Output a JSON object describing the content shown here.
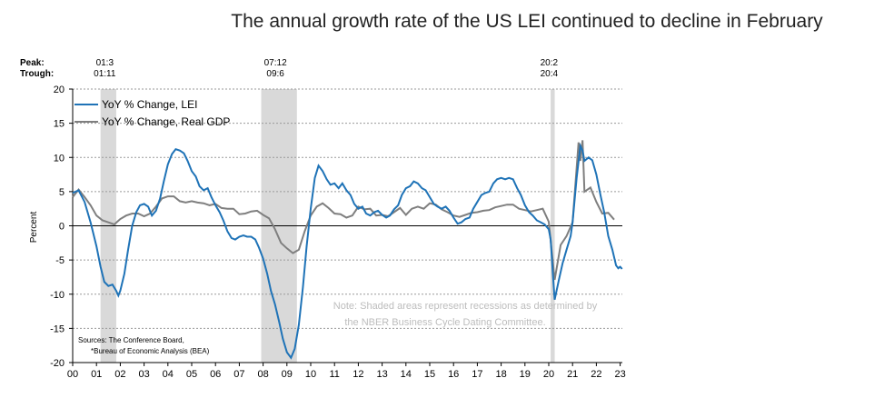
{
  "chart_data": {
    "type": "line",
    "title": "The annual growth rate of the US LEI continued to decline in February",
    "ylabel": "Percent",
    "xlabel": "",
    "ylim": [
      -20,
      20
    ],
    "yticks": [
      -20,
      -15,
      -10,
      -5,
      0,
      5,
      10,
      15,
      20
    ],
    "xlim": [
      2000,
      2023.5
    ],
    "xticks": [
      "00",
      "01",
      "02",
      "03",
      "04",
      "05",
      "06",
      "07",
      "08",
      "09",
      "10",
      "11",
      "12",
      "13",
      "14",
      "15",
      "16",
      "17",
      "18",
      "19",
      "20",
      "21",
      "22",
      "23"
    ],
    "grid": "horizontal dotted",
    "legend_position": "top-left",
    "recession_header": {
      "peak_label": "Peak:",
      "trough_label": "Trough:"
    },
    "recessions": [
      {
        "peak": "01:3",
        "trough": "01:11",
        "start": 2001.17,
        "end": 2001.83
      },
      {
        "peak": "07:12",
        "trough": "09:6",
        "start": 2007.92,
        "end": 2009.42
      },
      {
        "peak": "20:2",
        "trough": "20:4",
        "start": 2020.08,
        "end": 2020.25
      }
    ],
    "series": [
      {
        "name": "YoY % Change, LEI",
        "color": "#1f73b7",
        "points": [
          [
            2000.0,
            4.8
          ],
          [
            2000.25,
            5.2
          ],
          [
            2000.5,
            3.5
          ],
          [
            2000.75,
            0.5
          ],
          [
            2001.0,
            -3
          ],
          [
            2001.17,
            -6
          ],
          [
            2001.33,
            -8.2
          ],
          [
            2001.5,
            -8.8
          ],
          [
            2001.67,
            -8.6
          ],
          [
            2001.83,
            -9.5
          ],
          [
            2001.92,
            -10.2
          ],
          [
            2002.0,
            -9.5
          ],
          [
            2002.17,
            -7
          ],
          [
            2002.33,
            -3.5
          ],
          [
            2002.5,
            0
          ],
          [
            2002.67,
            2
          ],
          [
            2002.83,
            3
          ],
          [
            2003.0,
            3.2
          ],
          [
            2003.17,
            2.8
          ],
          [
            2003.33,
            1.5
          ],
          [
            2003.5,
            2.2
          ],
          [
            2003.67,
            4
          ],
          [
            2003.83,
            6.5
          ],
          [
            2004.0,
            9
          ],
          [
            2004.17,
            10.5
          ],
          [
            2004.33,
            11.2
          ],
          [
            2004.5,
            11
          ],
          [
            2004.67,
            10.6
          ],
          [
            2004.83,
            9.5
          ],
          [
            2005.0,
            8
          ],
          [
            2005.17,
            7.2
          ],
          [
            2005.33,
            5.8
          ],
          [
            2005.5,
            5.2
          ],
          [
            2005.67,
            5.5
          ],
          [
            2005.83,
            4.2
          ],
          [
            2006.0,
            3
          ],
          [
            2006.17,
            2
          ],
          [
            2006.33,
            0.8
          ],
          [
            2006.5,
            -0.8
          ],
          [
            2006.67,
            -1.8
          ],
          [
            2006.83,
            -2
          ],
          [
            2007.0,
            -1.6
          ],
          [
            2007.17,
            -1.4
          ],
          [
            2007.33,
            -1.6
          ],
          [
            2007.5,
            -1.6
          ],
          [
            2007.67,
            -2
          ],
          [
            2007.83,
            -3.2
          ],
          [
            2008.0,
            -4.8
          ],
          [
            2008.17,
            -7
          ],
          [
            2008.33,
            -9.5
          ],
          [
            2008.5,
            -11.5
          ],
          [
            2008.67,
            -14
          ],
          [
            2008.83,
            -16.5
          ],
          [
            2009.0,
            -18.5
          ],
          [
            2009.17,
            -19.3
          ],
          [
            2009.33,
            -18
          ],
          [
            2009.5,
            -14.5
          ],
          [
            2009.67,
            -9
          ],
          [
            2009.83,
            -3
          ],
          [
            2010.0,
            2.5
          ],
          [
            2010.17,
            7
          ],
          [
            2010.33,
            8.8
          ],
          [
            2010.5,
            8
          ],
          [
            2010.67,
            6.8
          ],
          [
            2010.83,
            6
          ],
          [
            2011.0,
            6.2
          ],
          [
            2011.17,
            5.5
          ],
          [
            2011.33,
            6.2
          ],
          [
            2011.5,
            5.2
          ],
          [
            2011.67,
            4.5
          ],
          [
            2011.83,
            3.2
          ],
          [
            2012.0,
            2.5
          ],
          [
            2012.17,
            2.8
          ],
          [
            2012.33,
            1.8
          ],
          [
            2012.5,
            1.5
          ],
          [
            2012.67,
            2
          ],
          [
            2012.83,
            2.2
          ],
          [
            2013.0,
            1.6
          ],
          [
            2013.17,
            1.2
          ],
          [
            2013.33,
            1.5
          ],
          [
            2013.5,
            2.4
          ],
          [
            2013.67,
            3
          ],
          [
            2013.83,
            4.5
          ],
          [
            2014.0,
            5.5
          ],
          [
            2014.17,
            5.8
          ],
          [
            2014.33,
            6.5
          ],
          [
            2014.5,
            6.2
          ],
          [
            2014.67,
            5.5
          ],
          [
            2014.83,
            5.2
          ],
          [
            2015.0,
            4.2
          ],
          [
            2015.17,
            3.2
          ],
          [
            2015.33,
            2.8
          ],
          [
            2015.5,
            2.5
          ],
          [
            2015.67,
            2.8
          ],
          [
            2015.83,
            2.2
          ],
          [
            2016.0,
            1.2
          ],
          [
            2016.17,
            0.3
          ],
          [
            2016.33,
            0.5
          ],
          [
            2016.5,
            1
          ],
          [
            2016.67,
            1.2
          ],
          [
            2016.83,
            2.5
          ],
          [
            2017.0,
            3.5
          ],
          [
            2017.17,
            4.5
          ],
          [
            2017.33,
            4.8
          ],
          [
            2017.5,
            5
          ],
          [
            2017.67,
            6.2
          ],
          [
            2017.83,
            6.8
          ],
          [
            2018.0,
            7
          ],
          [
            2018.17,
            6.8
          ],
          [
            2018.33,
            7
          ],
          [
            2018.5,
            6.8
          ],
          [
            2018.67,
            5.5
          ],
          [
            2018.83,
            4.5
          ],
          [
            2019.0,
            3
          ],
          [
            2019.17,
            2
          ],
          [
            2019.33,
            1.5
          ],
          [
            2019.5,
            0.8
          ],
          [
            2019.67,
            0.5
          ],
          [
            2019.83,
            0.2
          ],
          [
            2020.0,
            -0.5
          ],
          [
            2020.08,
            -2
          ],
          [
            2020.17,
            -7
          ],
          [
            2020.25,
            -10.8
          ],
          [
            2020.42,
            -8
          ],
          [
            2020.58,
            -5.5
          ],
          [
            2020.75,
            -3.5
          ],
          [
            2020.92,
            -1.5
          ],
          [
            2021.0,
            0.5
          ],
          [
            2021.17,
            7
          ],
          [
            2021.33,
            11.7
          ],
          [
            2021.42,
            11
          ],
          [
            2021.5,
            9.5
          ],
          [
            2021.67,
            10
          ],
          [
            2021.83,
            9.6
          ],
          [
            2022.0,
            7.5
          ],
          [
            2022.17,
            4.5
          ],
          [
            2022.33,
            2
          ],
          [
            2022.5,
            -1.5
          ],
          [
            2022.67,
            -3.5
          ],
          [
            2022.83,
            -5.8
          ],
          [
            2022.92,
            -6.2
          ],
          [
            2023.0,
            -6
          ],
          [
            2023.08,
            -6.3
          ]
        ]
      },
      {
        "name": "YoY % Change, Real GDP",
        "color": "#7f7f7f",
        "points": [
          [
            2000.0,
            4.2
          ],
          [
            2000.25,
            5.3
          ],
          [
            2000.5,
            4.2
          ],
          [
            2000.75,
            3
          ],
          [
            2001.0,
            1.5
          ],
          [
            2001.25,
            0.8
          ],
          [
            2001.5,
            0.5
          ],
          [
            2001.75,
            0.2
          ],
          [
            2002.0,
            1
          ],
          [
            2002.25,
            1.5
          ],
          [
            2002.5,
            1.8
          ],
          [
            2002.75,
            1.8
          ],
          [
            2003.0,
            1.4
          ],
          [
            2003.25,
            1.8
          ],
          [
            2003.5,
            2.8
          ],
          [
            2003.75,
            4
          ],
          [
            2004.0,
            4.3
          ],
          [
            2004.25,
            4.3
          ],
          [
            2004.5,
            3.6
          ],
          [
            2004.75,
            3.4
          ],
          [
            2005.0,
            3.6
          ],
          [
            2005.25,
            3.4
          ],
          [
            2005.5,
            3.3
          ],
          [
            2005.75,
            3
          ],
          [
            2006.0,
            3.2
          ],
          [
            2006.25,
            2.6
          ],
          [
            2006.5,
            2.5
          ],
          [
            2006.75,
            2.5
          ],
          [
            2007.0,
            1.7
          ],
          [
            2007.25,
            1.8
          ],
          [
            2007.5,
            2.1
          ],
          [
            2007.75,
            2.2
          ],
          [
            2008.0,
            1.6
          ],
          [
            2008.25,
            1.1
          ],
          [
            2008.5,
            -0.5
          ],
          [
            2008.75,
            -2.5
          ],
          [
            2009.0,
            -3.3
          ],
          [
            2009.25,
            -4
          ],
          [
            2009.5,
            -3.5
          ],
          [
            2009.75,
            -0.8
          ],
          [
            2010.0,
            1.5
          ],
          [
            2010.25,
            2.8
          ],
          [
            2010.5,
            3.3
          ],
          [
            2010.75,
            2.6
          ],
          [
            2011.0,
            1.8
          ],
          [
            2011.25,
            1.7
          ],
          [
            2011.5,
            1.2
          ],
          [
            2011.75,
            1.5
          ],
          [
            2012.0,
            2.8
          ],
          [
            2012.25,
            2.4
          ],
          [
            2012.5,
            2.5
          ],
          [
            2012.75,
            1.5
          ],
          [
            2013.0,
            1.6
          ],
          [
            2013.25,
            1.4
          ],
          [
            2013.5,
            2
          ],
          [
            2013.75,
            2.6
          ],
          [
            2014.0,
            1.6
          ],
          [
            2014.25,
            2.5
          ],
          [
            2014.5,
            2.8
          ],
          [
            2014.75,
            2.5
          ],
          [
            2015.0,
            3.3
          ],
          [
            2015.25,
            3.1
          ],
          [
            2015.5,
            2.4
          ],
          [
            2015.75,
            2
          ],
          [
            2016.0,
            1.5
          ],
          [
            2016.25,
            1.3
          ],
          [
            2016.5,
            1.6
          ],
          [
            2016.75,
            1.9
          ],
          [
            2017.0,
            2
          ],
          [
            2017.25,
            2.2
          ],
          [
            2017.5,
            2.3
          ],
          [
            2017.75,
            2.7
          ],
          [
            2018.0,
            2.9
          ],
          [
            2018.25,
            3.1
          ],
          [
            2018.5,
            3.1
          ],
          [
            2018.75,
            2.5
          ],
          [
            2019.0,
            2.3
          ],
          [
            2019.25,
            2.1
          ],
          [
            2019.5,
            2.3
          ],
          [
            2019.75,
            2.5
          ],
          [
            2020.0,
            0.6
          ],
          [
            2020.25,
            -7.9
          ],
          [
            2020.5,
            -2.8
          ],
          [
            2020.75,
            -1.5
          ],
          [
            2021.0,
            0.5
          ],
          [
            2021.25,
            12.2
          ],
          [
            2021.33,
            9.5
          ],
          [
            2021.42,
            12.5
          ],
          [
            2021.5,
            5
          ],
          [
            2021.75,
            5.6
          ],
          [
            2022.0,
            3.5
          ],
          [
            2022.25,
            1.8
          ],
          [
            2022.5,
            1.9
          ],
          [
            2022.75,
            0.9
          ]
        ]
      }
    ],
    "note": [
      "Note: Shaded areas represent recessions as determined by",
      "the NBER Business Cycle Dating Committee."
    ],
    "sources": [
      "Sources: The Conference Board,",
      "*Bureau of Economic Analysis (BEA)"
    ]
  }
}
